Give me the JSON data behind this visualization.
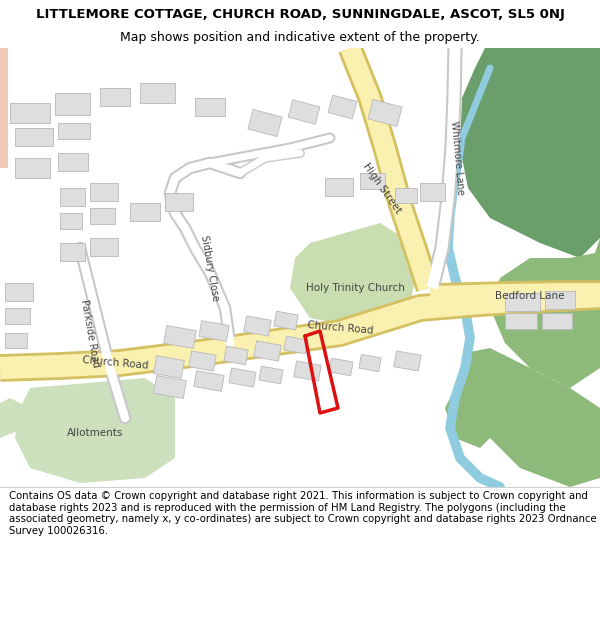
{
  "title_line1": "LITTLEMORE COTTAGE, CHURCH ROAD, SUNNINGDALE, ASCOT, SL5 0NJ",
  "title_line2": "Map shows position and indicative extent of the property.",
  "footer_text": "Contains OS data © Crown copyright and database right 2021. This information is subject to Crown copyright and database rights 2023 and is reproduced with the permission of HM Land Registry. The polygons (including the associated geometry, namely x, y co-ordinates) are subject to Crown copyright and database rights 2023 Ordnance Survey 100026316.",
  "map_bg": "#f8f8f8",
  "road_yellow_fill": "#faf0b0",
  "road_yellow_border": "#d4c060",
  "road_white_fill": "#ffffff",
  "road_white_border": "#c8c8c8",
  "green_dark": "#6a9e6a",
  "green_mid": "#8dba7a",
  "green_light": "#c8ddb0",
  "green_pale": "#cce0be",
  "blue_river": "#90cce0",
  "building_fill": "#dedede",
  "building_edge": "#b8b8b8",
  "red_poly": "#dd1111",
  "text_dark": "#333333",
  "text_road": "#555555",
  "figsize": [
    6.0,
    6.25
  ],
  "dpi": 100
}
